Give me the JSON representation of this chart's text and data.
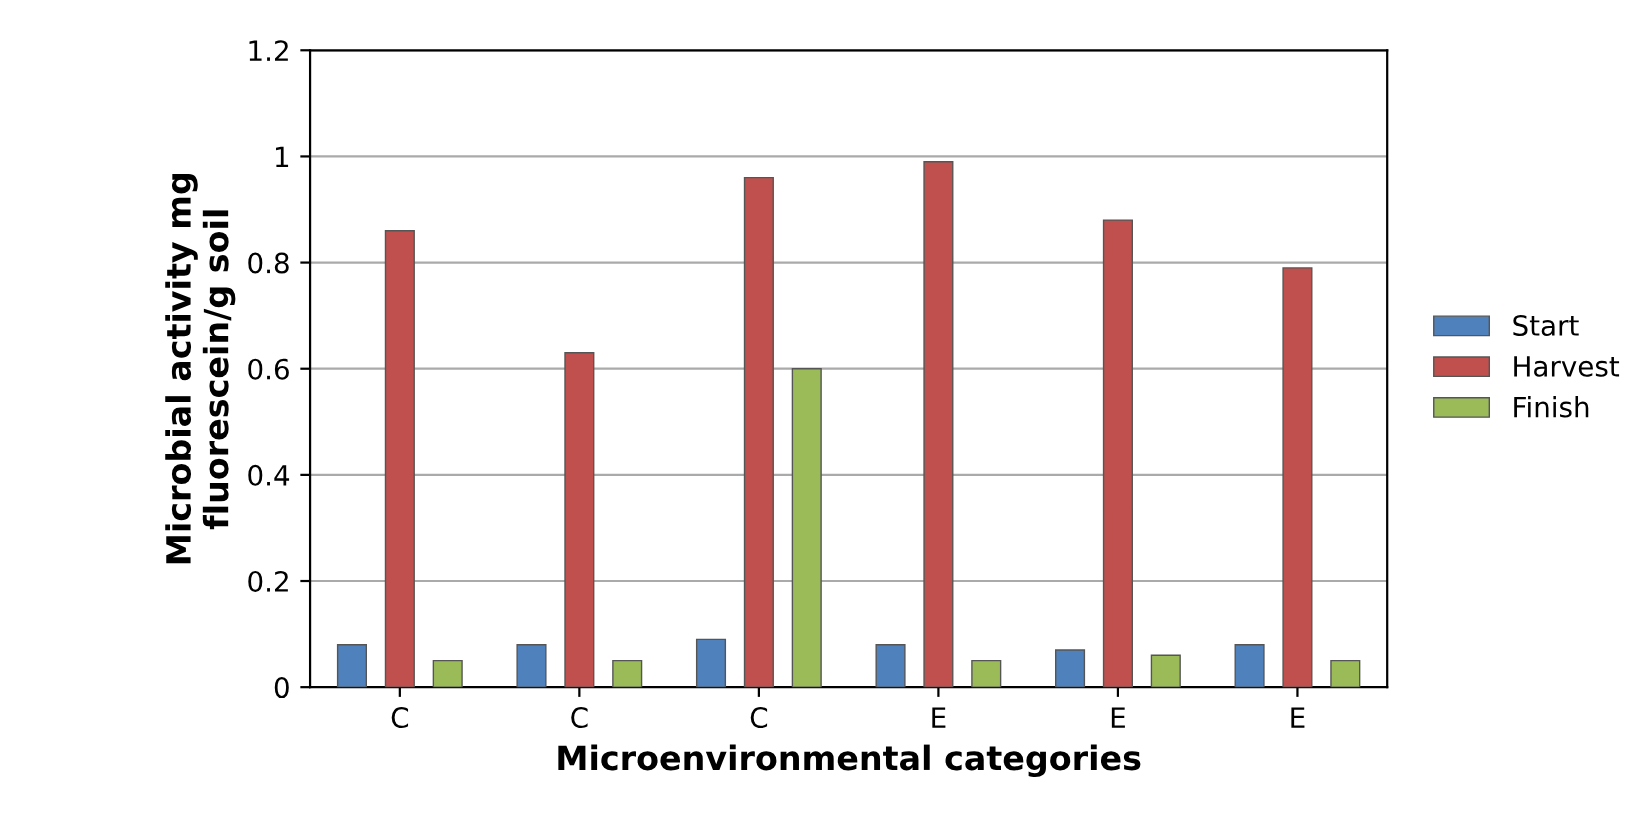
{
  "chart_data": {
    "type": "bar",
    "xlabel": "Microenvironmental categories",
    "ylabel": "Microbial activity mg\nfluorescein/g soil",
    "categories": [
      "C",
      "C",
      "C",
      "E",
      "E",
      "E"
    ],
    "series": [
      {
        "name": "Start",
        "color": "#4f81bd",
        "values": [
          0.08,
          0.08,
          0.09,
          0.08,
          0.07,
          0.08
        ]
      },
      {
        "name": "Harvest",
        "color": "#c0504d",
        "values": [
          0.86,
          0.63,
          0.96,
          0.99,
          0.88,
          0.79
        ]
      },
      {
        "name": "Finish",
        "color": "#9bbb59",
        "values": [
          0.05,
          0.05,
          0.6,
          0.05,
          0.06,
          0.05
        ]
      }
    ],
    "ylim": [
      0,
      1.2
    ],
    "yticks": [
      0,
      0.2,
      0.4,
      0.6,
      0.8,
      1,
      1.2
    ],
    "grid": "y",
    "legend": "right"
  }
}
